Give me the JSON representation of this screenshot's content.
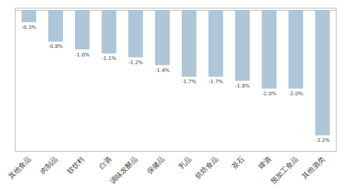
{
  "chart_data": {
    "type": "bar",
    "categories": [
      "其他食品",
      "肉制品",
      "软饮料",
      "白酒",
      "调味发酵品",
      "保健品",
      "乳品",
      "烘焙食品",
      "茶石",
      "啤酒",
      "预加工食品",
      "其他酒类"
    ],
    "values": [
      -0.3,
      -0.8,
      -1.0,
      -1.1,
      -1.2,
      -1.4,
      -1.7,
      -1.7,
      -1.8,
      -2.0,
      -2.0,
      -3.2
    ],
    "value_labels": [
      "-0.3%",
      "-0.8%",
      "-1.0%",
      "-1.1%",
      "-1.2%",
      "-1.4%",
      "-1.7%",
      "-1.7%",
      "-1.8%",
      "-2.0%",
      "-2.0%",
      "-3.2%"
    ],
    "data_labels": true,
    "color": "#aec6d8",
    "ylim": [
      -3.6,
      0.05
    ],
    "grid": false,
    "tick_labels": "x"
  }
}
